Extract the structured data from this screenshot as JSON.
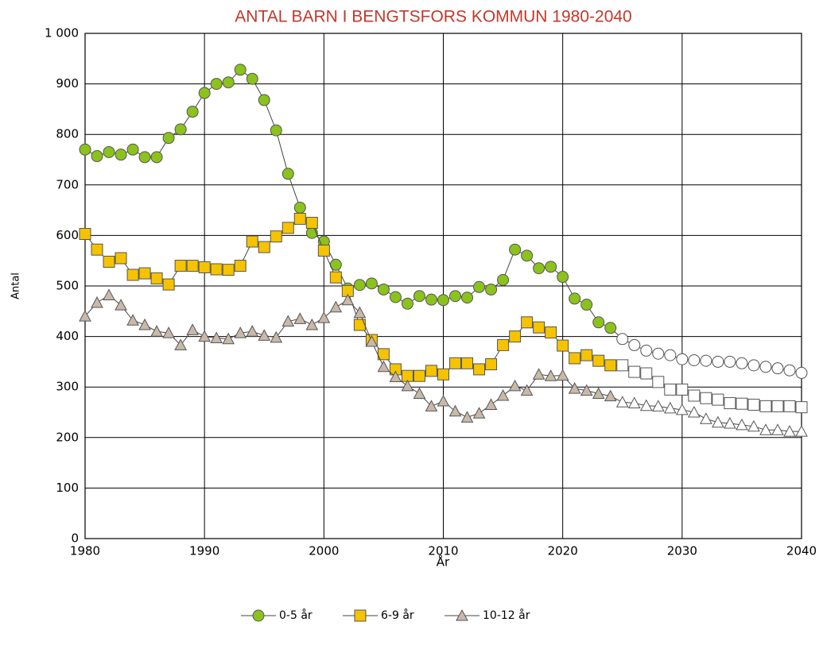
{
  "chart_data": {
    "type": "line",
    "title": "ANTAL BARN I BENGTSFORS KOMMUN 1980-2040",
    "x_label": "År",
    "y_label": "Antal",
    "x": [
      1980,
      1981,
      1982,
      1983,
      1984,
      1985,
      1986,
      1987,
      1988,
      1989,
      1990,
      1991,
      1992,
      1993,
      1994,
      1995,
      1996,
      1997,
      1998,
      1999,
      2000,
      2001,
      2002,
      2003,
      2004,
      2005,
      2006,
      2007,
      2008,
      2009,
      2010,
      2011,
      2012,
      2013,
      2014,
      2015,
      2016,
      2017,
      2018,
      2019,
      2020,
      2021,
      2022,
      2023,
      2024,
      2025,
      2026,
      2027,
      2028,
      2029,
      2030,
      2031,
      2032,
      2033,
      2034,
      2035,
      2036,
      2037,
      2038,
      2039,
      2040
    ],
    "forecast_start": 2025,
    "series": [
      {
        "name": "0-5 år",
        "color": "#8cc21c",
        "marker": "circle",
        "values": [
          770,
          757,
          765,
          760,
          770,
          755,
          755,
          793,
          810,
          845,
          882,
          900,
          903,
          928,
          910,
          868,
          808,
          722,
          655,
          605,
          588,
          542,
          495,
          502,
          505,
          493,
          478,
          465,
          480,
          473,
          472,
          480,
          477,
          498,
          493,
          512,
          572,
          560,
          535,
          538,
          518,
          475,
          463,
          428,
          417,
          395,
          383,
          372,
          366,
          363,
          355,
          353,
          352,
          350,
          350,
          347,
          343,
          340,
          337,
          333,
          328
        ]
      },
      {
        "name": "6-9 år",
        "color": "#f6c300",
        "marker": "square",
        "values": [
          603,
          572,
          548,
          555,
          522,
          525,
          515,
          503,
          540,
          540,
          537,
          533,
          532,
          540,
          588,
          577,
          598,
          615,
          633,
          625,
          570,
          517,
          490,
          423,
          393,
          365,
          335,
          322,
          322,
          332,
          325,
          347,
          347,
          335,
          345,
          383,
          400,
          428,
          418,
          408,
          382,
          357,
          363,
          352,
          343,
          343,
          330,
          327,
          310,
          295,
          295,
          283,
          278,
          275,
          268,
          267,
          265,
          262,
          262,
          262,
          260
        ]
      },
      {
        "name": "10-12 år",
        "color": "#c9b9a9",
        "marker": "triangle",
        "values": [
          440,
          467,
          482,
          462,
          432,
          423,
          410,
          407,
          383,
          413,
          400,
          397,
          395,
          407,
          410,
          402,
          398,
          430,
          435,
          423,
          437,
          458,
          472,
          447,
          390,
          340,
          320,
          302,
          287,
          262,
          272,
          252,
          240,
          248,
          265,
          283,
          302,
          293,
          325,
          322,
          323,
          297,
          293,
          287,
          282,
          270,
          268,
          263,
          262,
          258,
          255,
          250,
          237,
          230,
          228,
          225,
          222,
          215,
          215,
          212,
          212
        ]
      }
    ],
    "xlim": [
      1980,
      2040
    ],
    "xticks": [
      1980,
      1990,
      2000,
      2010,
      2020,
      2030,
      2040
    ],
    "ylim": [
      0,
      1000
    ],
    "yticks": [
      0,
      100,
      200,
      300,
      400,
      500,
      600,
      700,
      800,
      900,
      {
        "value": 1000,
        "label": "1 000"
      }
    ],
    "grid": true,
    "legend": "bottom"
  }
}
